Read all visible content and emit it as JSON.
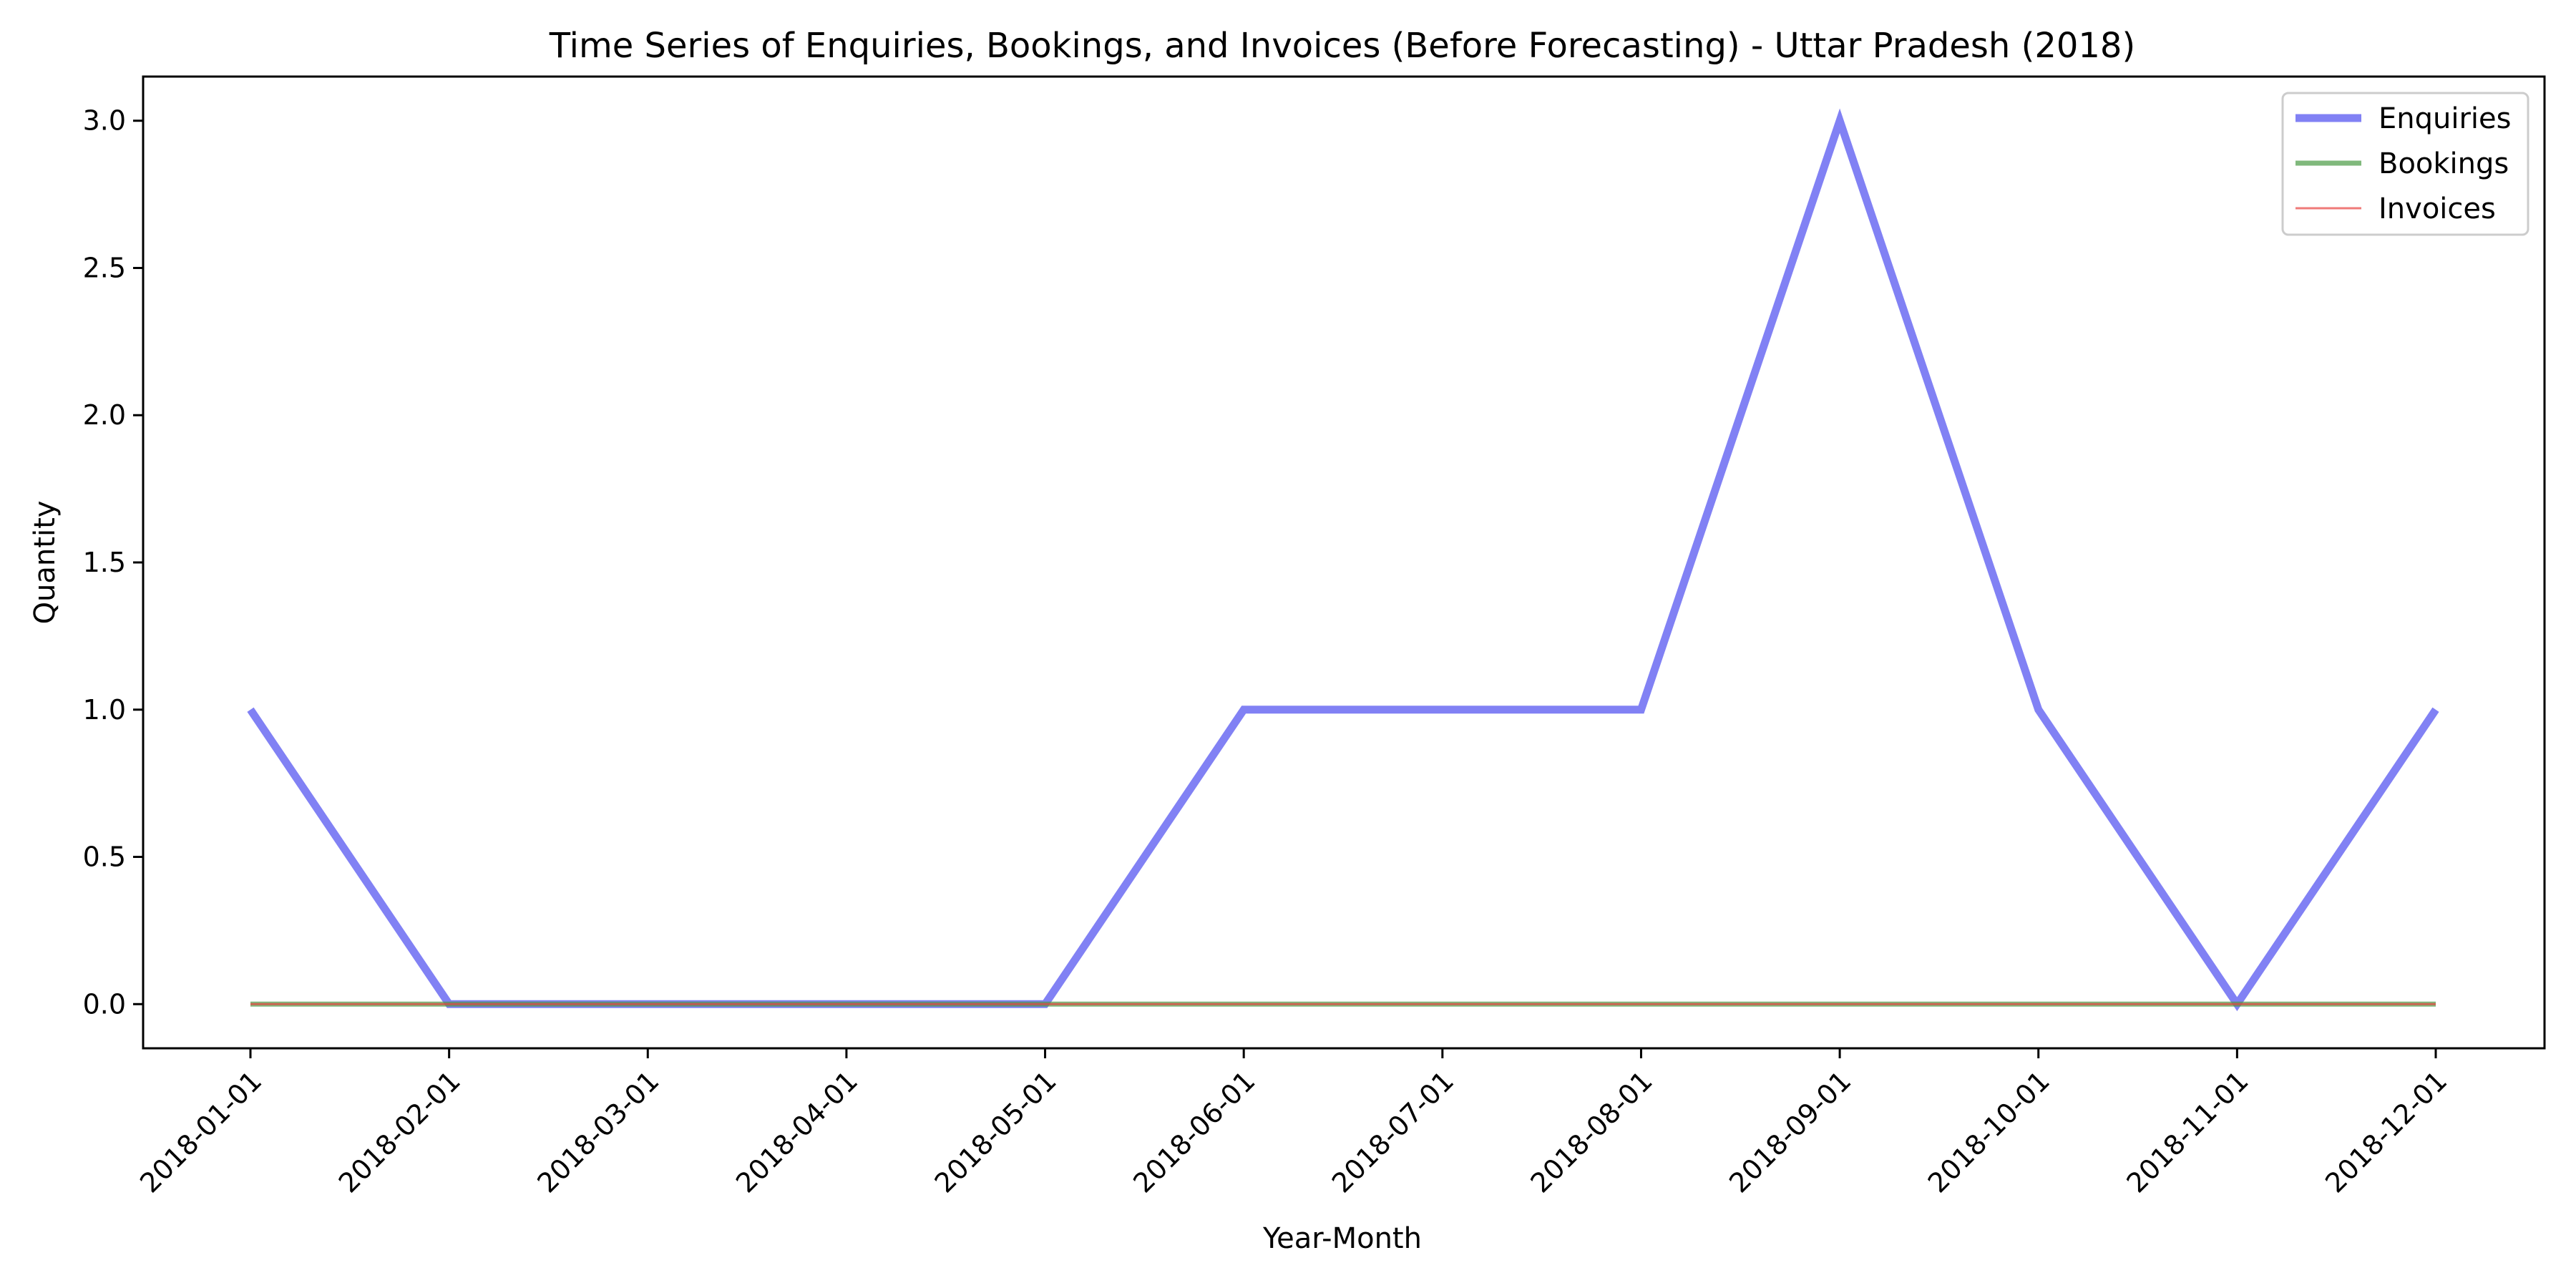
{
  "chart_data": {
    "type": "line",
    "title": "Time Series of Enquiries, Bookings, and Invoices (Before Forecasting) - Uttar Pradesh (2018)",
    "xlabel": "Year-Month",
    "ylabel": "Quantity",
    "categories": [
      "2018-01-01",
      "2018-02-01",
      "2018-03-01",
      "2018-04-01",
      "2018-05-01",
      "2018-06-01",
      "2018-07-01",
      "2018-08-01",
      "2018-09-01",
      "2018-10-01",
      "2018-11-01",
      "2018-12-01"
    ],
    "y_ticks": [
      "0.0",
      "0.5",
      "1.0",
      "1.5",
      "2.0",
      "2.5",
      "3.0"
    ],
    "ylim": [
      -0.15,
      3.15
    ],
    "grid": false,
    "legend_position": "top-right",
    "series": [
      {
        "name": "Enquiries",
        "color": "#4b4bef",
        "values": [
          1,
          0,
          0,
          0,
          0,
          1,
          1,
          1,
          3,
          1,
          0,
          1
        ]
      },
      {
        "name": "Bookings",
        "color": "#4a9b45",
        "values": [
          0,
          0,
          0,
          0,
          0,
          0,
          0,
          0,
          0,
          0,
          0,
          0
        ]
      },
      {
        "name": "Invoices",
        "color": "#e8413f",
        "values": [
          0,
          0,
          0,
          0,
          0,
          0,
          0,
          0,
          0,
          0,
          0,
          0
        ]
      }
    ]
  }
}
